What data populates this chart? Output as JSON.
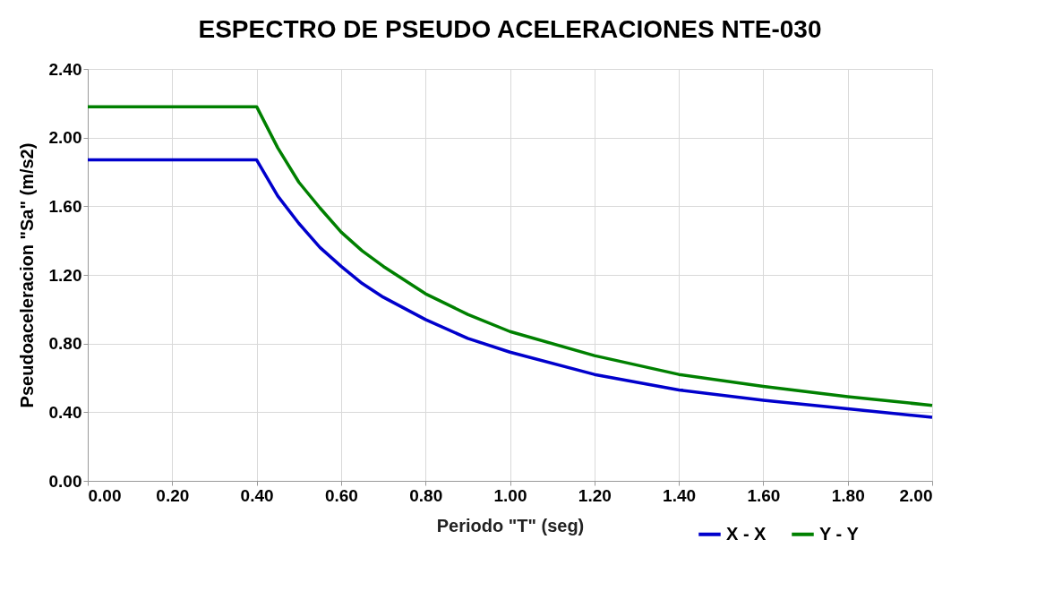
{
  "chart_data": {
    "type": "line",
    "title": "ESPECTRO DE PSEUDO ACELERACIONES NTE-030",
    "xlabel": "Periodo \"T\" (seg)",
    "ylabel": "Pseudoaceleracion \"Sa\" (m/s2)",
    "x": [
      0,
      0.1,
      0.2,
      0.3,
      0.4,
      0.45,
      0.5,
      0.55,
      0.6,
      0.65,
      0.7,
      0.8,
      0.9,
      1.0,
      1.2,
      1.4,
      1.6,
      1.8,
      2.0
    ],
    "series": [
      {
        "name": "X - X",
        "color": "#0000cc",
        "values": [
          1.87,
          1.87,
          1.87,
          1.87,
          1.87,
          1.66,
          1.5,
          1.36,
          1.25,
          1.15,
          1.07,
          0.94,
          0.83,
          0.75,
          0.62,
          0.53,
          0.47,
          0.42,
          0.37
        ]
      },
      {
        "name": "Y - Y",
        "color": "#008000",
        "values": [
          2.18,
          2.18,
          2.18,
          2.18,
          2.18,
          1.94,
          1.74,
          1.59,
          1.45,
          1.34,
          1.25,
          1.09,
          0.97,
          0.87,
          0.73,
          0.62,
          0.55,
          0.49,
          0.44
        ]
      }
    ],
    "xlim": [
      0,
      2
    ],
    "ylim": [
      0,
      2.4
    ],
    "xticks": [
      {
        "value": 0,
        "label": "0.00"
      },
      {
        "value": 0.2,
        "label": "0.20"
      },
      {
        "value": 0.4,
        "label": "0.40"
      },
      {
        "value": 0.6,
        "label": "0.60"
      },
      {
        "value": 0.8,
        "label": "0.80"
      },
      {
        "value": 1.0,
        "label": "1.00"
      },
      {
        "value": 1.2,
        "label": "1.20"
      },
      {
        "value": 1.4,
        "label": "1.40"
      },
      {
        "value": 1.6,
        "label": "1.60"
      },
      {
        "value": 1.8,
        "label": "1.80"
      },
      {
        "value": 2.0,
        "label": "2.00"
      }
    ],
    "yticks": [
      {
        "value": 0,
        "label": "0.00"
      },
      {
        "value": 0.4,
        "label": "0.40"
      },
      {
        "value": 0.8,
        "label": "0.80"
      },
      {
        "value": 1.2,
        "label": "1.20"
      },
      {
        "value": 1.6,
        "label": "1.60"
      },
      {
        "value": 2.0,
        "label": "2.00"
      },
      {
        "value": 2.4,
        "label": "2.40"
      }
    ],
    "grid": true,
    "legend": "bottom right",
    "marker": "none",
    "line_style": "solid"
  }
}
